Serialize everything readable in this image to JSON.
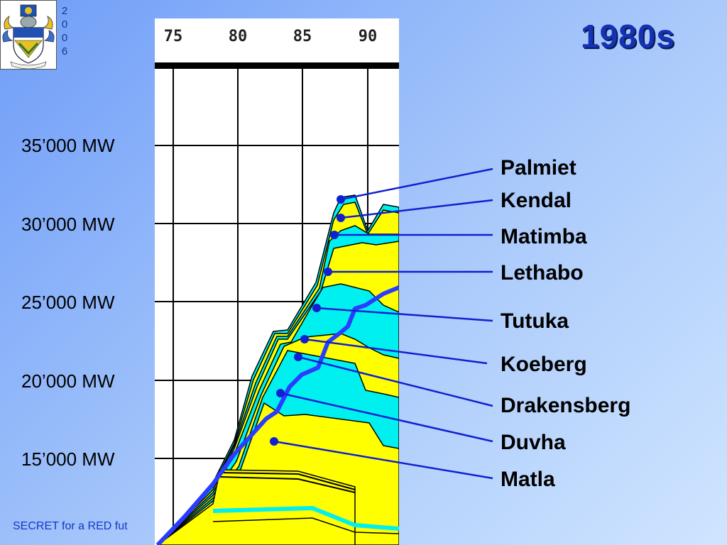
{
  "slide": {
    "title": "1980s",
    "year_digits": [
      "2",
      "0",
      "0",
      "6"
    ],
    "footer_text": "SECRET for a RED fut",
    "logo_icon": "coat-of-arms-icon"
  },
  "chart_data": {
    "type": "area",
    "x_ticks": [
      "75",
      "80",
      "85",
      "90"
    ],
    "y_ticks": [
      "35’000 MW",
      "30’000 MW",
      "25’000 MW",
      "20’000 MW",
      "15’000 MW"
    ],
    "stations": [
      "Palmiet",
      "Kendal",
      "Matimba",
      "Lethabo",
      "Tutuka",
      "Koeberg",
      "Drakensberg",
      "Duvha",
      "Matla"
    ],
    "colors": {
      "yellow": "#ffff00",
      "cyan": "#00f0f0",
      "demand_line": "#2a3dff",
      "leader_line": "#1020d0",
      "title": "#1432b4"
    }
  }
}
